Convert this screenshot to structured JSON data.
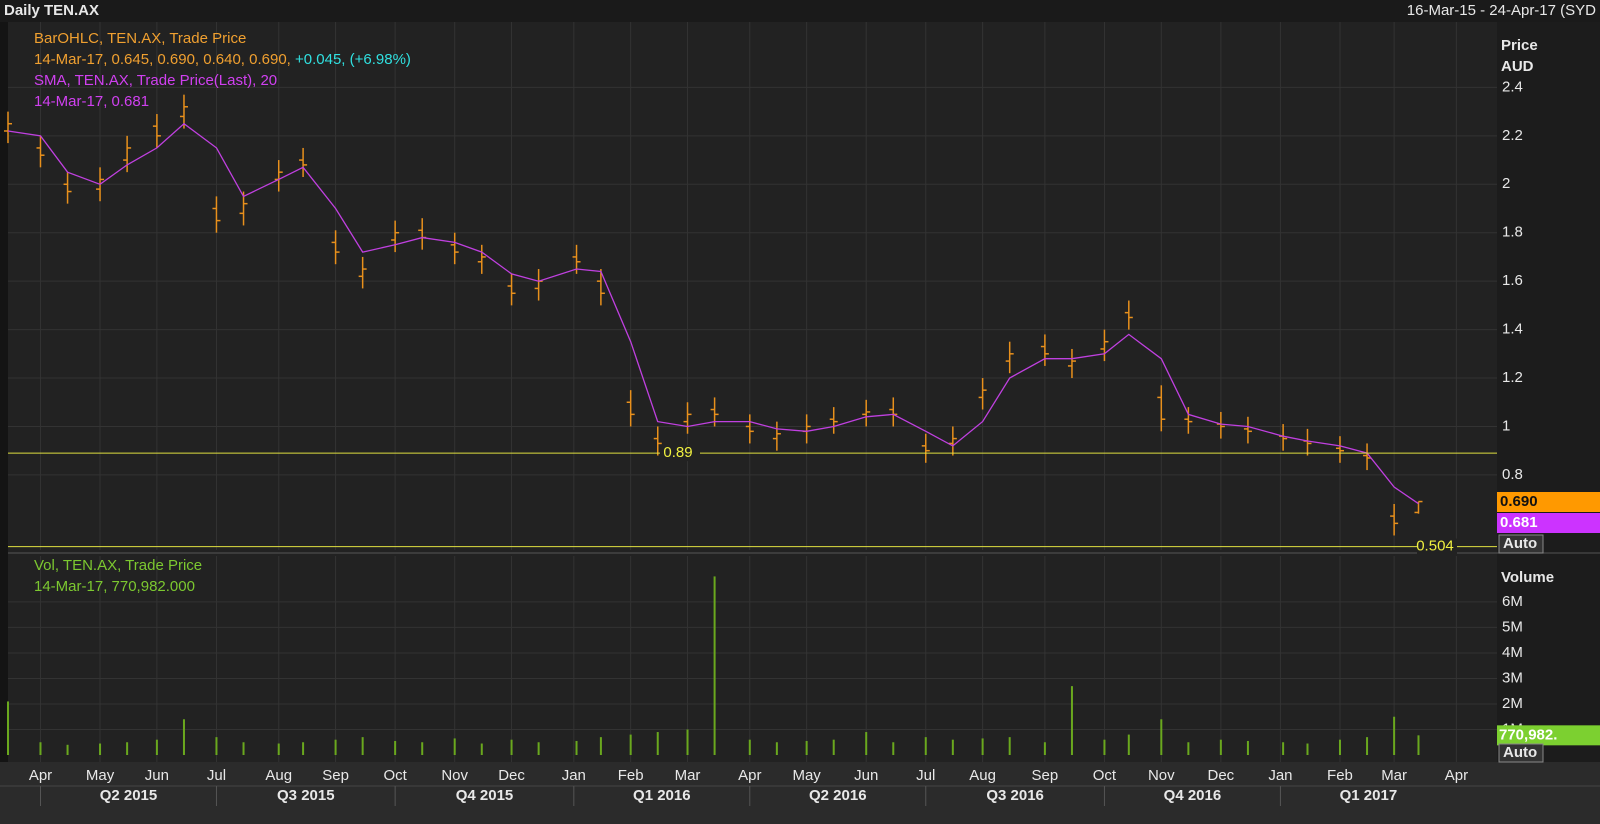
{
  "header": {
    "title": "Daily TEN.AX",
    "range": "16-Mar-15 - 24-Apr-17 (SYD"
  },
  "chart_data": [
    {
      "type": "ohlc",
      "axis_title": "Price",
      "axis_unit": "AUD",
      "auto_label": "Auto",
      "color": "#e8901c",
      "legend": [
        [
          {
            "text": "BarOHLC, TEN.AX, Trade Price",
            "color": "#f0a030"
          }
        ],
        [
          {
            "text": "14-Mar-17, 0.645, 0.690, 0.640, 0.690, ",
            "color": "#f0a030"
          },
          {
            "text": "+0.045, (+6.98%)",
            "color": "#30e0e0"
          }
        ],
        [
          {
            "text": "SMA, TEN.AX, Trade Price(Last),  20",
            "color": "#d040f0"
          }
        ],
        [
          {
            "text": "14-Mar-17, 0.681",
            "color": "#d040f0"
          }
        ]
      ],
      "xlim": [
        "2015-03-16",
        "2017-04-24"
      ],
      "x": [
        "2015-03-16",
        "2015-04-01",
        "2015-04-15",
        "2015-05-01",
        "2015-05-15",
        "2015-06-01",
        "2015-06-15",
        "2015-07-01",
        "2015-07-15",
        "2015-08-03",
        "2015-08-14",
        "2015-09-01",
        "2015-09-15",
        "2015-10-01",
        "2015-10-15",
        "2015-11-02",
        "2015-11-16",
        "2015-12-01",
        "2015-12-15",
        "2016-01-04",
        "2016-01-15",
        "2016-02-01",
        "2016-02-15",
        "2016-03-01",
        "2016-03-15",
        "2016-04-01",
        "2016-04-15",
        "2016-05-02",
        "2016-05-16",
        "2016-06-01",
        "2016-06-15",
        "2016-07-01",
        "2016-07-15",
        "2016-08-01",
        "2016-08-15",
        "2016-09-01",
        "2016-09-15",
        "2016-10-03",
        "2016-10-14",
        "2016-11-01",
        "2016-11-15",
        "2016-12-01",
        "2016-12-15",
        "2017-01-03",
        "2017-01-16",
        "2017-02-01",
        "2017-02-15",
        "2017-03-01",
        "2017-03-14"
      ],
      "open": [
        2.22,
        2.15,
        2.0,
        1.98,
        2.1,
        2.24,
        2.28,
        1.9,
        1.88,
        2.02,
        2.1,
        1.76,
        1.62,
        1.77,
        1.81,
        1.75,
        1.68,
        1.58,
        1.57,
        1.7,
        1.6,
        1.1,
        0.95,
        1.02,
        1.07,
        1.0,
        0.95,
        0.98,
        1.03,
        1.05,
        1.07,
        0.92,
        0.93,
        1.12,
        1.27,
        1.33,
        1.25,
        1.32,
        1.47,
        1.12,
        1.03,
        1.01,
        0.99,
        0.96,
        0.94,
        0.91,
        0.88,
        0.63,
        0.645
      ],
      "high": [
        2.3,
        2.2,
        2.05,
        2.07,
        2.2,
        2.29,
        2.37,
        1.95,
        1.97,
        2.1,
        2.15,
        1.81,
        1.7,
        1.85,
        1.86,
        1.8,
        1.75,
        1.63,
        1.65,
        1.75,
        1.65,
        1.15,
        1.0,
        1.1,
        1.12,
        1.05,
        1.02,
        1.05,
        1.08,
        1.11,
        1.12,
        0.97,
        1.0,
        1.2,
        1.35,
        1.38,
        1.32,
        1.4,
        1.52,
        1.17,
        1.08,
        1.06,
        1.04,
        1.01,
        0.99,
        0.96,
        0.93,
        0.68,
        0.69
      ],
      "low": [
        2.17,
        2.07,
        1.92,
        1.93,
        2.05,
        2.15,
        2.23,
        1.8,
        1.83,
        1.97,
        2.03,
        1.67,
        1.57,
        1.72,
        1.73,
        1.67,
        1.63,
        1.5,
        1.52,
        1.63,
        1.5,
        1.0,
        0.88,
        0.97,
        1.0,
        0.93,
        0.9,
        0.93,
        0.97,
        1.0,
        1.0,
        0.85,
        0.88,
        1.07,
        1.22,
        1.25,
        1.2,
        1.27,
        1.4,
        0.98,
        0.97,
        0.95,
        0.93,
        0.9,
        0.88,
        0.85,
        0.82,
        0.55,
        0.64
      ],
      "close": [
        2.25,
        2.12,
        1.97,
        2.02,
        2.15,
        2.2,
        2.32,
        1.85,
        1.92,
        2.05,
        2.08,
        1.72,
        1.65,
        1.8,
        1.78,
        1.72,
        1.7,
        1.55,
        1.6,
        1.68,
        1.55,
        1.05,
        0.93,
        1.05,
        1.05,
        0.98,
        0.97,
        1.0,
        1.02,
        1.06,
        1.05,
        0.9,
        0.95,
        1.15,
        1.3,
        1.3,
        1.27,
        1.35,
        1.45,
        1.03,
        1.02,
        1.0,
        0.98,
        0.95,
        0.93,
        0.9,
        0.87,
        0.6,
        0.69
      ],
      "overlay": {
        "color": "#c040e0",
        "values": [
          2.22,
          2.2,
          2.05,
          2.0,
          2.08,
          2.15,
          2.25,
          2.15,
          1.95,
          2.02,
          2.07,
          1.9,
          1.72,
          1.75,
          1.78,
          1.76,
          1.72,
          1.63,
          1.6,
          1.65,
          1.64,
          1.35,
          1.02,
          1.0,
          1.02,
          1.02,
          0.99,
          0.98,
          1.0,
          1.04,
          1.05,
          0.98,
          0.92,
          1.02,
          1.2,
          1.28,
          1.28,
          1.3,
          1.38,
          1.28,
          1.05,
          1.01,
          1.0,
          0.96,
          0.94,
          0.92,
          0.89,
          0.75,
          0.681
        ]
      },
      "ylim": [
        0.49,
        2.67
      ],
      "yticks": [
        0.8,
        1,
        1.2,
        1.4,
        1.6,
        1.8,
        2,
        2.2,
        2.4
      ],
      "hlines": [
        {
          "value": 0.89,
          "label": "0.89"
        },
        {
          "value": 0.504,
          "label": "0.504"
        }
      ],
      "last_labels": [
        {
          "value": 0.69,
          "label": "0.690",
          "color": "#ff9900"
        },
        {
          "value": 0.681,
          "label": "0.681",
          "color": "#cc33ff"
        }
      ]
    },
    {
      "type": "volume",
      "axis_title": "Volume",
      "auto_label": "Auto",
      "color": "#6aa81e",
      "legend": [
        [
          {
            "text": "Vol, TEN.AX, Trade Price",
            "color": "#7cc830"
          }
        ],
        [
          {
            "text": "14-Mar-17, 770,982.000",
            "color": "#7cc830"
          }
        ]
      ],
      "values": [
        2100000,
        500000,
        400000,
        450000,
        500000,
        600000,
        1400000,
        700000,
        500000,
        450000,
        500000,
        600000,
        700000,
        550000,
        500000,
        650000,
        450000,
        600000,
        500000,
        550000,
        700000,
        800000,
        900000,
        1000000,
        7000000,
        600000,
        500000,
        550000,
        600000,
        900000,
        500000,
        700000,
        600000,
        650000,
        700000,
        500000,
        2700000,
        600000,
        800000,
        1400000,
        500000,
        600000,
        550000,
        500000,
        450000,
        600000,
        700000,
        1500000,
        770982
      ],
      "ylim": [
        0,
        7800000
      ],
      "yticks": [
        {
          "value": 1000000,
          "label": "1M"
        },
        {
          "value": 2000000,
          "label": "2M"
        },
        {
          "value": 3000000,
          "label": "3M"
        },
        {
          "value": 4000000,
          "label": "4M"
        },
        {
          "value": 5000000,
          "label": "5M"
        },
        {
          "value": 6000000,
          "label": "6M"
        }
      ],
      "last_label": {
        "value": 770982,
        "label": "770,982."
      },
      "xticks": [
        {
          "value": "2015-04-01",
          "label": "Apr"
        },
        {
          "value": "2015-05-01",
          "label": "May"
        },
        {
          "value": "2015-06-01",
          "label": "Jun"
        },
        {
          "value": "2015-07-01",
          "label": "Jul"
        },
        {
          "value": "2015-08-01",
          "label": "Aug"
        },
        {
          "value": "2015-09-01",
          "label": "Sep"
        },
        {
          "value": "2015-10-01",
          "label": "Oct"
        },
        {
          "value": "2015-11-01",
          "label": "Nov"
        },
        {
          "value": "2015-12-01",
          "label": "Dec"
        },
        {
          "value": "2016-01-01",
          "label": "Jan"
        },
        {
          "value": "2016-02-01",
          "label": "Feb"
        },
        {
          "value": "2016-03-01",
          "label": "Mar"
        },
        {
          "value": "2016-04-01",
          "label": "Apr"
        },
        {
          "value": "2016-05-01",
          "label": "May"
        },
        {
          "value": "2016-06-01",
          "label": "Jun"
        },
        {
          "value": "2016-07-01",
          "label": "Jul"
        },
        {
          "value": "2016-08-01",
          "label": "Aug"
        },
        {
          "value": "2016-09-01",
          "label": "Sep"
        },
        {
          "value": "2016-10-01",
          "label": "Oct"
        },
        {
          "value": "2016-11-01",
          "label": "Nov"
        },
        {
          "value": "2016-12-01",
          "label": "Dec"
        },
        {
          "value": "2017-01-01",
          "label": "Jan"
        },
        {
          "value": "2017-02-01",
          "label": "Feb"
        },
        {
          "value": "2017-03-01",
          "label": "Mar"
        },
        {
          "value": "2017-04-01",
          "label": "Apr"
        }
      ],
      "quarters": [
        {
          "value": "2015-04-01",
          "label": "Q2 2015"
        },
        {
          "value": "2015-07-01",
          "label": "Q3 2015"
        },
        {
          "value": "2015-10-01",
          "label": "Q4 2015"
        },
        {
          "value": "2016-01-01",
          "label": "Q1 2016"
        },
        {
          "value": "2016-04-01",
          "label": "Q2 2016"
        },
        {
          "value": "2016-07-01",
          "label": "Q3 2016"
        },
        {
          "value": "2016-10-01",
          "label": "Q4 2016"
        },
        {
          "value": "2017-01-01",
          "label": "Q1 2017"
        }
      ]
    }
  ]
}
